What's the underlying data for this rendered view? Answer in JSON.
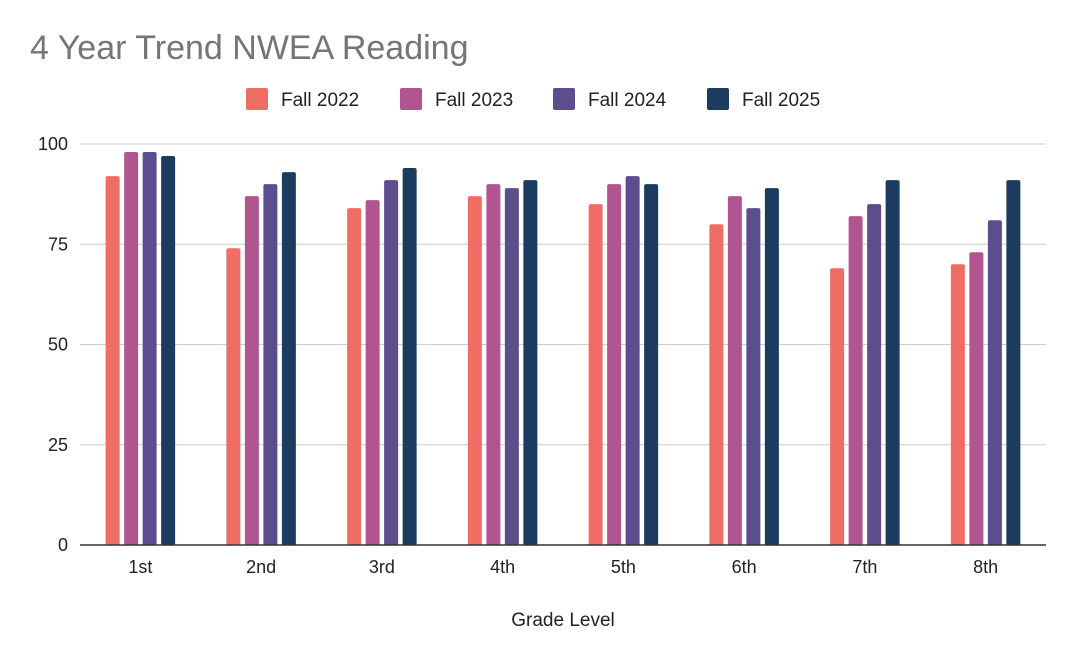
{
  "chart_data": {
    "type": "bar",
    "title": "4 Year Trend NWEA Reading",
    "xlabel": "Grade Level",
    "ylabel": "",
    "categories": [
      "1st",
      "2nd",
      "3rd",
      "4th",
      "5th",
      "6th",
      "7th",
      "8th"
    ],
    "series": [
      {
        "name": "Fall 2022",
        "color": "#ee6e66",
        "values": [
          92,
          74,
          84,
          87,
          85,
          80,
          69,
          70
        ]
      },
      {
        "name": "Fall 2023",
        "color": "#b0558f",
        "values": [
          98,
          87,
          86,
          90,
          90,
          87,
          82,
          73
        ]
      },
      {
        "name": "Fall 2024",
        "color": "#5c4e8c",
        "values": [
          98,
          90,
          91,
          89,
          92,
          84,
          85,
          81
        ]
      },
      {
        "name": "Fall 2025",
        "color": "#1b3c5e",
        "values": [
          97,
          93,
          94,
          91,
          90,
          89,
          91,
          91
        ]
      }
    ],
    "ylim": [
      0,
      100
    ],
    "yticks": [
      0,
      25,
      50,
      75,
      100
    ],
    "grid": true,
    "legend": "top-center"
  }
}
